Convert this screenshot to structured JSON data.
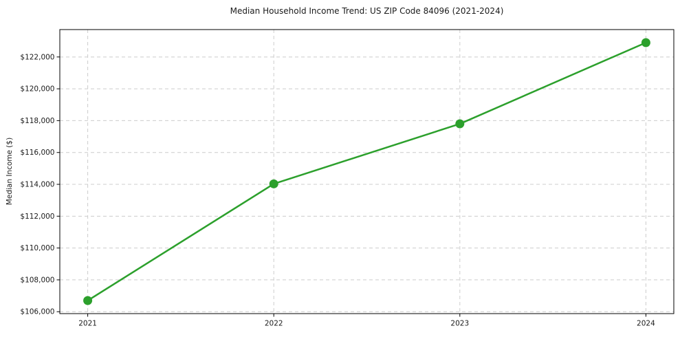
{
  "chart_data": {
    "type": "line",
    "title": "Median Household Income Trend: US ZIP Code 84096 (2021-2024)",
    "xlabel": "",
    "ylabel": "Median Income ($)",
    "x": [
      2021,
      2022,
      2023,
      2024
    ],
    "x_tick_labels": [
      "2021",
      "2022",
      "2023",
      "2024"
    ],
    "values": [
      106700,
      114030,
      117800,
      122900
    ],
    "series_name": "Median Household Income",
    "xlim": [
      2020.85,
      2024.15
    ],
    "ylim": [
      105880,
      123720
    ],
    "ytick_values": [
      106000,
      108000,
      110000,
      112000,
      114000,
      116000,
      118000,
      120000,
      122000
    ],
    "ytick_labels": [
      "$106,000",
      "$108,000",
      "$110,000",
      "$112,000",
      "$114,000",
      "$116,000",
      "$118,000",
      "$120,000",
      "$122,000"
    ],
    "grid": true,
    "grid_style": "dashed",
    "legend_position": "none",
    "colors": {
      "line": "#2ca02c",
      "marker": "#2ca02c",
      "grid": "#cccccc",
      "spine": "#000000",
      "text": "#1a1a1a",
      "background": "#ffffff"
    }
  }
}
